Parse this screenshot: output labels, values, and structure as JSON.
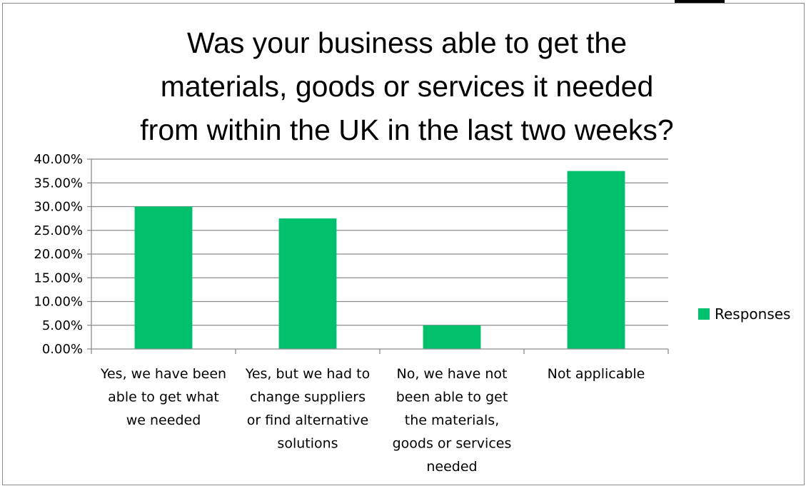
{
  "chart_data": {
    "type": "bar",
    "title_lines": [
      "Was your business able to get the",
      "materials, goods or services it needed",
      "from within the UK in the last two weeks?"
    ],
    "categories": [
      [
        "Yes, we have been",
        "able to get what",
        "we needed"
      ],
      [
        "Yes, but we had to",
        "change suppliers",
        "or find alternative",
        "solutions"
      ],
      [
        "No, we have not",
        "been able to get",
        "the materials,",
        "goods or services",
        "needed"
      ],
      [
        "Not applicable"
      ]
    ],
    "series": [
      {
        "name": "Responses",
        "values": [
          30.0,
          27.5,
          5.0,
          37.5
        ],
        "color": "#00c06b"
      }
    ],
    "yticks": [
      "0.00%",
      "5.00%",
      "10.00%",
      "15.00%",
      "20.00%",
      "25.00%",
      "30.00%",
      "35.00%",
      "40.00%"
    ],
    "ylim": [
      0,
      40
    ],
    "grid": true,
    "legend_position": "right"
  }
}
